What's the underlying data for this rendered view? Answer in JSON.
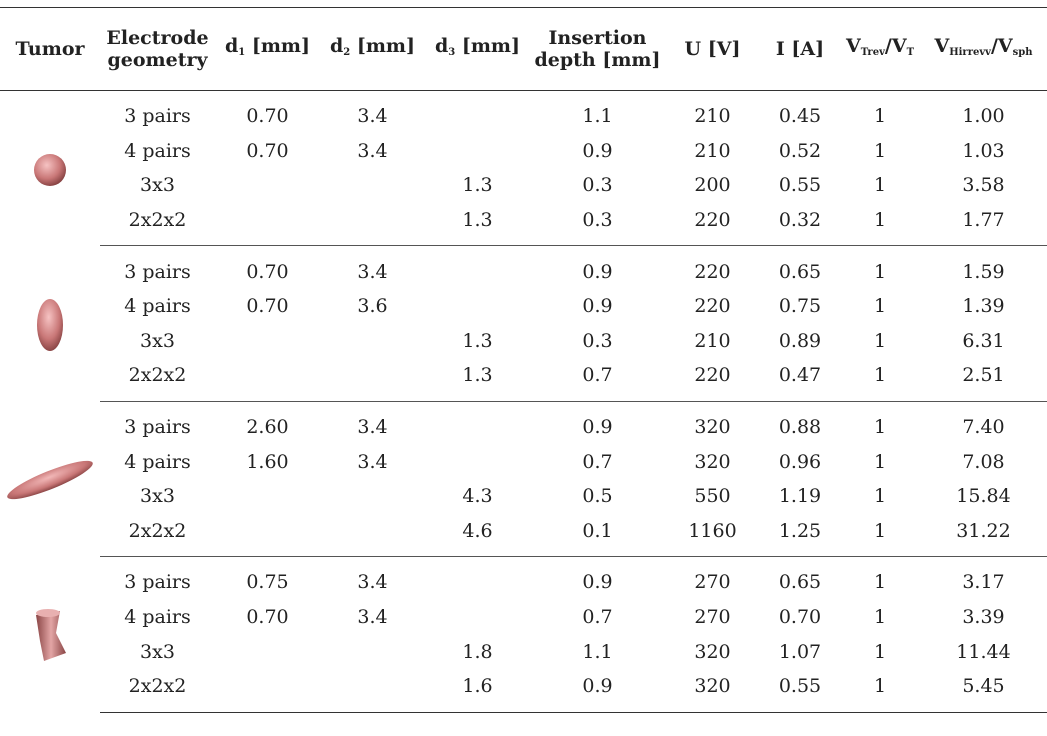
{
  "table": {
    "header": [
      [
        "Tumor"
      ],
      [
        "Electrode geometry"
      ],
      [
        "d",
        "1",
        " [mm]"
      ],
      [
        "d",
        "2",
        " [mm]"
      ],
      [
        "d",
        "3",
        " [mm]"
      ],
      [
        "Insertion depth [mm]"
      ],
      [
        "U [V]"
      ],
      [
        "I [A]"
      ],
      [
        "V",
        "Trev",
        "/V",
        "T"
      ],
      [
        "V",
        "Hirrevv",
        "/V",
        "sph"
      ]
    ],
    "groups": [
      {
        "rows": [
          [
            "3 pairs",
            "0.70",
            "3.4",
            null,
            "1.1",
            "210",
            "0.45",
            "1",
            "1.00"
          ],
          [
            "4 pairs",
            "0.70",
            "3.4",
            null,
            "0.9",
            "210",
            "0.52",
            "1",
            "1.03"
          ],
          [
            "3x3",
            null,
            null,
            "1.3",
            "0.3",
            "200",
            "0.55",
            "1",
            "3.58"
          ],
          [
            "2x2x2",
            null,
            null,
            "1.3",
            "0.3",
            "220",
            "0.32",
            "1",
            "1.77"
          ]
        ]
      },
      {
        "rows": [
          [
            "3 pairs",
            "0.70",
            "3.4",
            null,
            "0.9",
            "220",
            "0.65",
            "1",
            "1.59"
          ],
          [
            "4 pairs",
            "0.70",
            "3.6",
            null,
            "0.9",
            "220",
            "0.75",
            "1",
            "1.39"
          ],
          [
            "3x3",
            null,
            null,
            "1.3",
            "0.3",
            "210",
            "0.89",
            "1",
            "6.31"
          ],
          [
            "2x2x2",
            null,
            null,
            "1.3",
            "0.7",
            "220",
            "0.47",
            "1",
            "2.51"
          ]
        ]
      },
      {
        "rows": [
          [
            "3 pairs",
            "2.60",
            "3.4",
            null,
            "0.9",
            "320",
            "0.88",
            "1",
            "7.40"
          ],
          [
            "4 pairs",
            "1.60",
            "3.4",
            null,
            "0.7",
            "320",
            "0.96",
            "1",
            "7.08"
          ],
          [
            "3x3",
            null,
            null,
            "4.3",
            "0.5",
            "550",
            "1.19",
            "1",
            "15.84"
          ],
          [
            "2x2x2",
            null,
            null,
            "4.6",
            "0.1",
            "1160",
            "1.25",
            "1",
            "31.22"
          ]
        ]
      },
      {
        "rows": [
          [
            "3 pairs",
            "0.75",
            "3.4",
            null,
            "0.9",
            "270",
            "0.65",
            "1",
            "3.17"
          ],
          [
            "4 pairs",
            "0.70",
            "3.4",
            null,
            "0.7",
            "270",
            "0.70",
            "1",
            "3.39"
          ],
          [
            "3x3",
            null,
            null,
            "1.8",
            "1.1",
            "320",
            "1.07",
            "1",
            "11.44"
          ],
          [
            "2x2x2",
            null,
            null,
            "1.6",
            "0.9",
            "320",
            "0.55",
            "1",
            "5.45"
          ]
        ]
      }
    ]
  }
}
